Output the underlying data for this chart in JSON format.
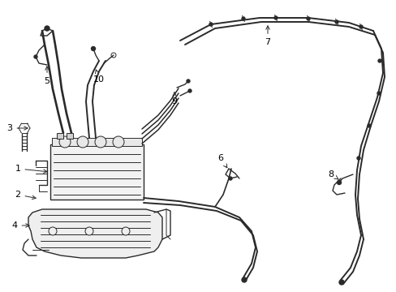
{
  "background_color": "#ffffff",
  "line_color": "#2a2a2a",
  "label_color": "#000000",
  "figsize": [
    4.89,
    3.6
  ],
  "dpi": 100,
  "lw_cable": 1.4,
  "lw_main": 1.0,
  "lw_thin": 0.7,
  "label_fontsize": 8.0
}
